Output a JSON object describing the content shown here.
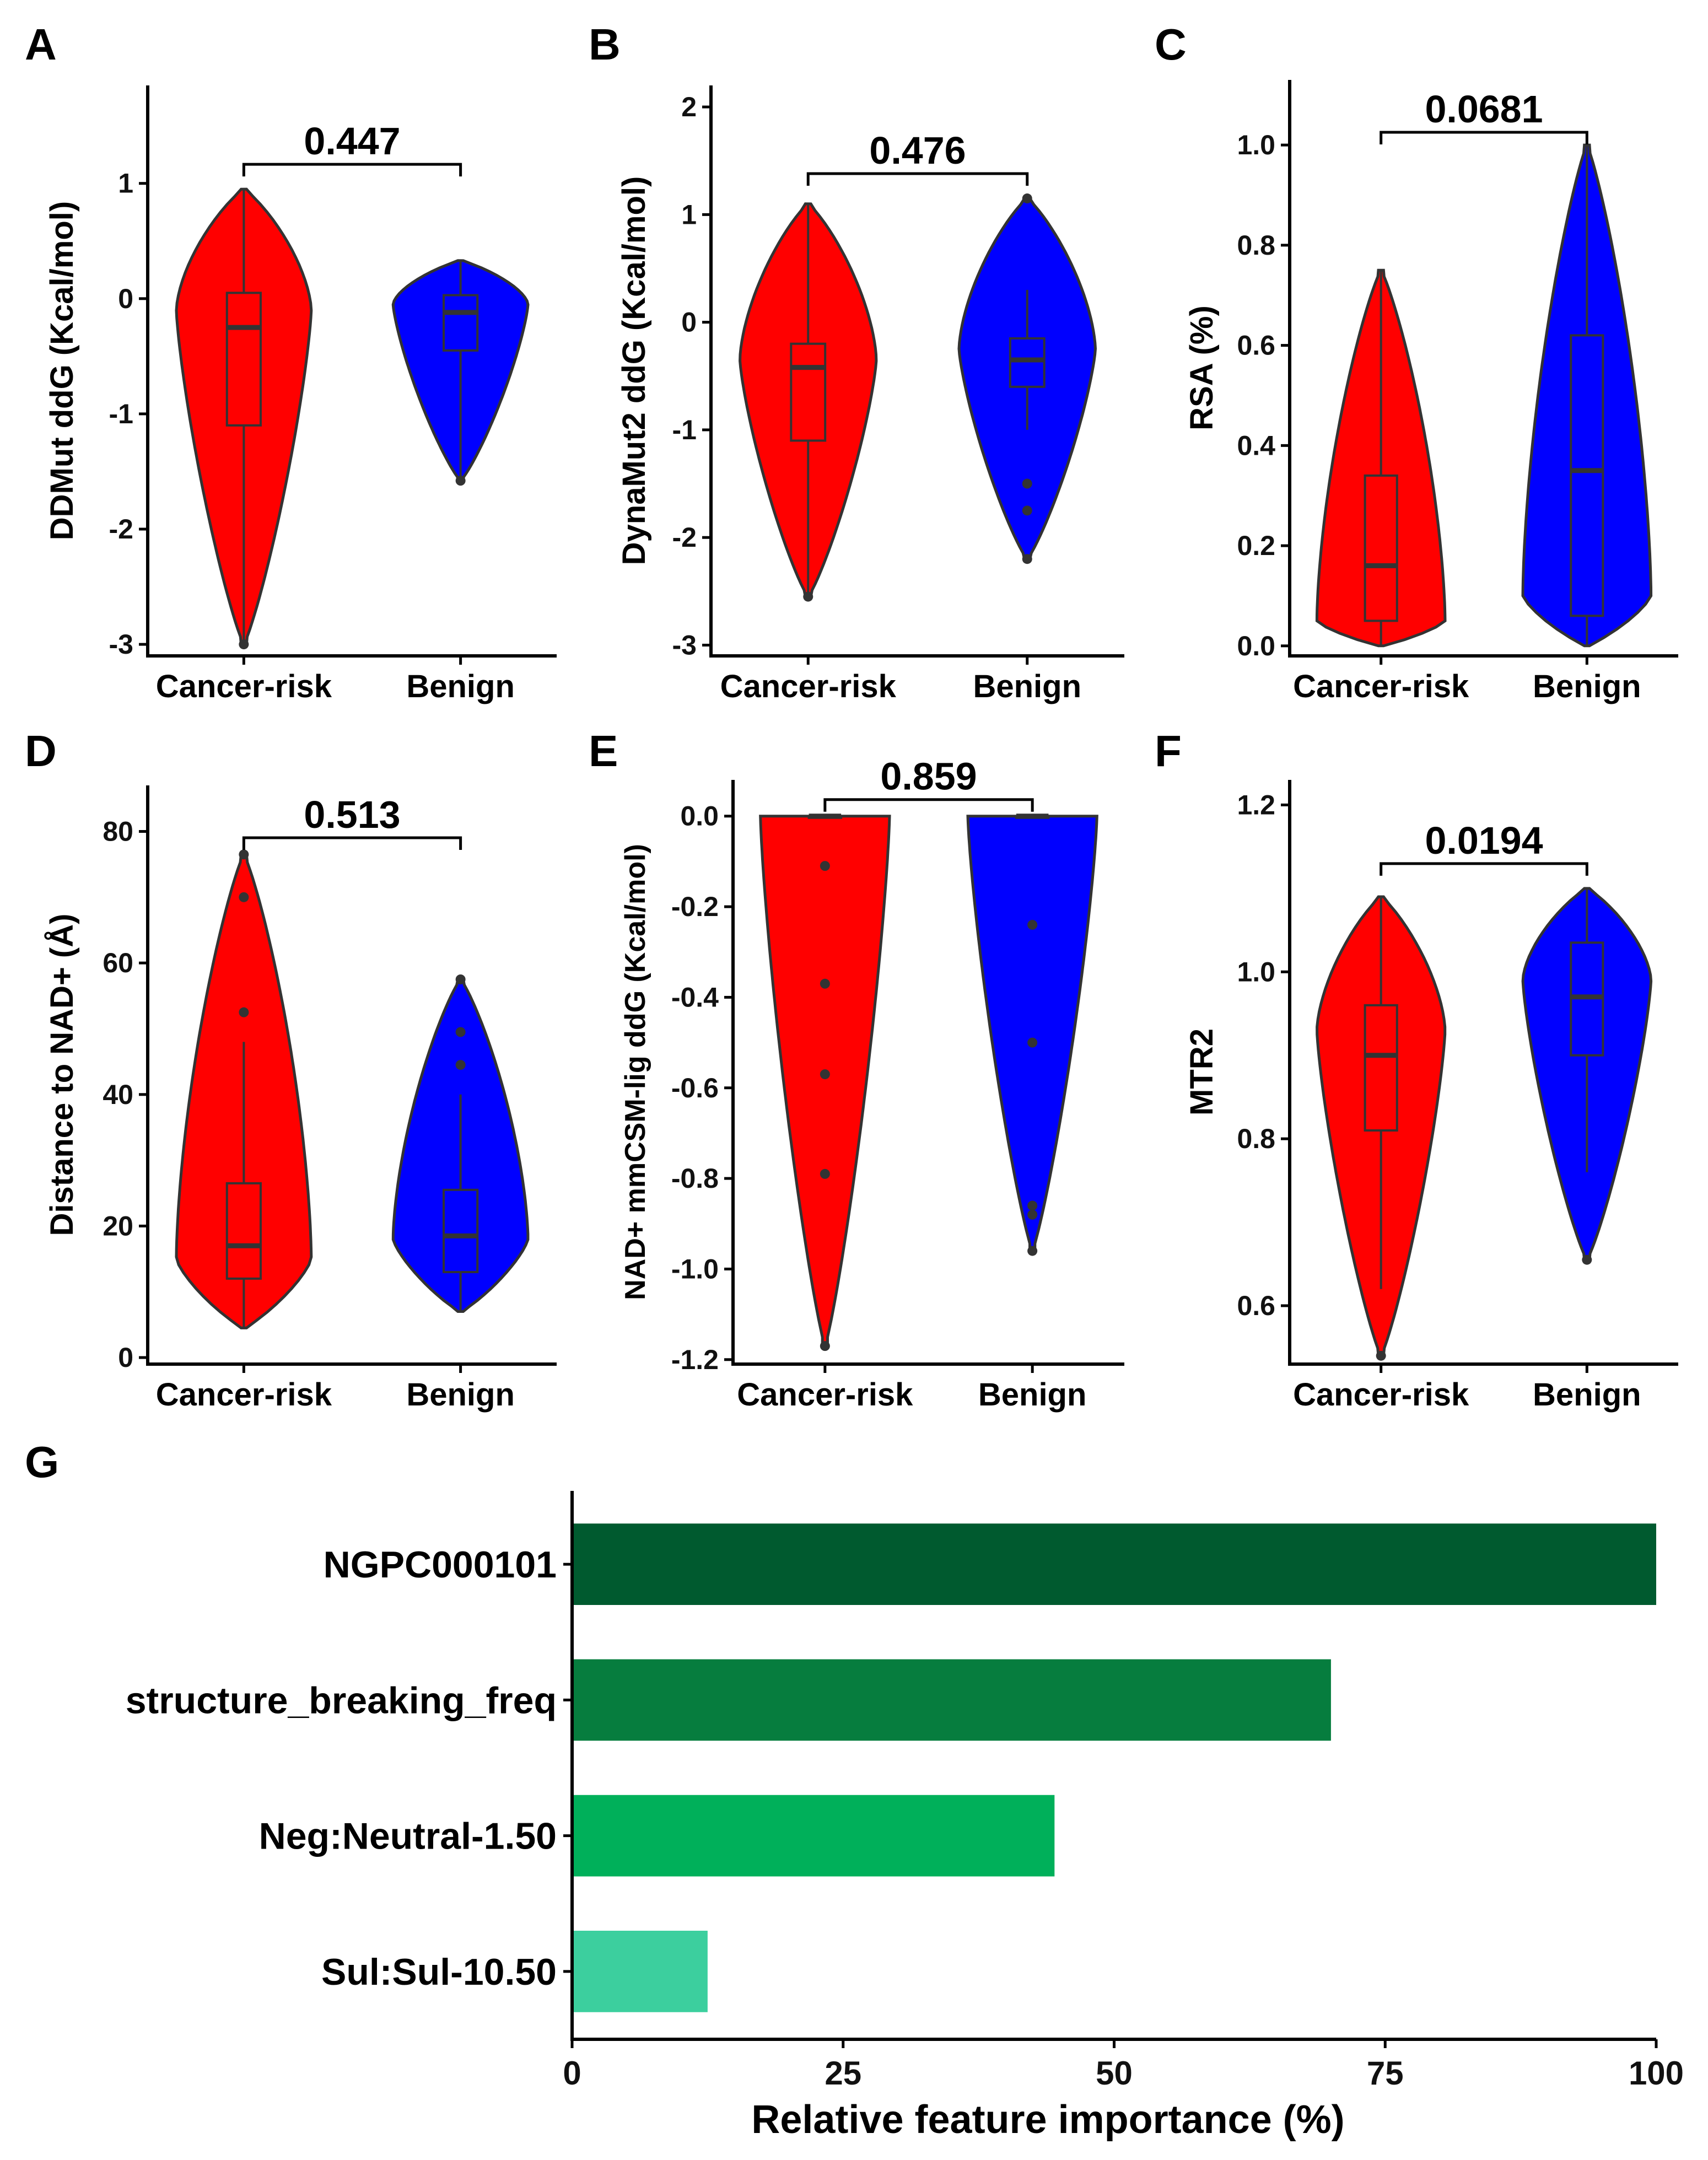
{
  "chart_data": [
    {
      "id": "A",
      "panel_label": "A",
      "type": "violin",
      "ylabel": "DDMut ddG (Kcal/mol)",
      "categories": [
        "Cancer-risk",
        "Benign"
      ],
      "yticks": [
        -3,
        -2,
        -1,
        0,
        1
      ],
      "ylim": [
        -3.1,
        1.85
      ],
      "p_value": "0.447",
      "colors": [
        "#ff0000",
        "#0000ff"
      ],
      "groups": [
        {
          "name": "Cancer-risk",
          "min": -3.0,
          "max": 0.95,
          "q1": -1.1,
          "median": -0.25,
          "q3": 0.05,
          "whisker_low": -3.0,
          "whisker_high": 0.95,
          "mode": -0.1,
          "outliers": [
            -3.0
          ]
        },
        {
          "name": "Benign",
          "min": -1.58,
          "max": 0.33,
          "q1": -0.45,
          "median": -0.12,
          "q3": 0.03,
          "whisker_low": -1.58,
          "whisker_high": 0.33,
          "mode": -0.05,
          "outliers": [
            -1.58
          ]
        }
      ]
    },
    {
      "id": "B",
      "panel_label": "B",
      "type": "violin",
      "ylabel": "DynaMut2 ddG (Kcal/mol)",
      "categories": [
        "Cancer-risk",
        "Benign"
      ],
      "yticks": [
        -3,
        -2,
        -1,
        0,
        1,
        2
      ],
      "ylim": [
        -3.1,
        2.2
      ],
      "p_value": "0.476",
      "colors": [
        "#ff0000",
        "#0000ff"
      ],
      "groups": [
        {
          "name": "Cancer-risk",
          "min": -2.55,
          "max": 1.1,
          "q1": -1.1,
          "median": -0.42,
          "q3": -0.2,
          "whisker_low": -2.55,
          "whisker_high": 1.1,
          "mode": -0.35,
          "outliers": [
            -2.55
          ]
        },
        {
          "name": "Benign",
          "min": -2.2,
          "max": 1.15,
          "q1": -0.6,
          "median": -0.35,
          "q3": -0.15,
          "whisker_low": -1.0,
          "whisker_high": 0.3,
          "mode": -0.25,
          "outliers": [
            1.15,
            -1.5,
            -1.75,
            -2.2
          ]
        }
      ]
    },
    {
      "id": "C",
      "panel_label": "C",
      "type": "violin",
      "ylabel": "RSA (%)",
      "categories": [
        "Cancer-risk",
        "Benign"
      ],
      "yticks": [
        0.0,
        0.2,
        0.4,
        0.6,
        0.8,
        1.0
      ],
      "ytick_labels": [
        "0.0",
        "0.2",
        "0.4",
        "0.6",
        "0.8",
        "1.0"
      ],
      "ylim": [
        -0.02,
        1.13
      ],
      "p_value": "0.0681",
      "colors": [
        "#ff0000",
        "#0000ff"
      ],
      "groups": [
        {
          "name": "Cancer-risk",
          "min": 0.0,
          "max": 0.75,
          "q1": 0.05,
          "median": 0.16,
          "q3": 0.34,
          "whisker_low": 0.0,
          "whisker_high": 0.75,
          "mode": 0.05,
          "outliers": []
        },
        {
          "name": "Benign",
          "min": 0.0,
          "max": 1.0,
          "q1": 0.06,
          "median": 0.35,
          "q3": 0.62,
          "whisker_low": 0.0,
          "whisker_high": 1.0,
          "mode": 0.1,
          "outliers": []
        }
      ]
    },
    {
      "id": "D",
      "panel_label": "D",
      "type": "violin",
      "ylabel": "Distance to NAD+ (Å)",
      "categories": [
        "Cancer-risk",
        "Benign"
      ],
      "yticks": [
        0,
        20,
        40,
        60,
        80
      ],
      "ylim": [
        -1,
        87
      ],
      "p_value": "0.513",
      "colors": [
        "#ff0000",
        "#0000ff"
      ],
      "groups": [
        {
          "name": "Cancer-risk",
          "min": 4.5,
          "max": 76.5,
          "q1": 12,
          "median": 17,
          "q3": 26.5,
          "whisker_low": 4.5,
          "whisker_high": 48,
          "mode": 15,
          "outliers": [
            52.5,
            70,
            76.5
          ]
        },
        {
          "name": "Benign",
          "min": 7,
          "max": 57.5,
          "q1": 13,
          "median": 18.5,
          "q3": 25.5,
          "whisker_low": 7,
          "whisker_high": 40,
          "mode": 18,
          "outliers": [
            44.5,
            49.5,
            57.5
          ]
        }
      ]
    },
    {
      "id": "E",
      "panel_label": "E",
      "type": "violin",
      "ylabel": "NAD+ mmCSM-lig ddG (Kcal/mol)",
      "categories": [
        "Cancer-risk",
        "Benign"
      ],
      "yticks": [
        -1.2,
        -1.0,
        -0.8,
        -0.6,
        -0.4,
        -0.2,
        0.0
      ],
      "ytick_labels": [
        "-1.2",
        "-1.0",
        "-0.8",
        "-0.6",
        "-0.4",
        "-0.2",
        "0.0"
      ],
      "ylim": [
        -1.21,
        0.08
      ],
      "p_value": "0.859",
      "colors": [
        "#ff0000",
        "#0000ff"
      ],
      "groups": [
        {
          "name": "Cancer-risk",
          "min": -1.17,
          "max": 0.0,
          "q1": 0.0,
          "median": 0.0,
          "q3": 0.0,
          "whisker_low": 0.0,
          "whisker_high": 0.0,
          "mode": 0.0,
          "outliers": [
            -0.11,
            -0.37,
            -0.57,
            -0.79,
            -1.17
          ]
        },
        {
          "name": "Benign",
          "min": -0.96,
          "max": 0.0,
          "q1": 0.0,
          "median": 0.0,
          "q3": 0.0,
          "whisker_low": 0.0,
          "whisker_high": 0.0,
          "mode": 0.0,
          "outliers": [
            -0.24,
            -0.5,
            -0.86,
            -0.88,
            -0.96
          ]
        }
      ]
    },
    {
      "id": "F",
      "panel_label": "F",
      "type": "violin",
      "ylabel": "MTR2",
      "categories": [
        "Cancer-risk",
        "Benign"
      ],
      "yticks": [
        0.6,
        0.8,
        1.0,
        1.2
      ],
      "ytick_labels": [
        "0.6",
        "0.8",
        "1.0",
        "1.2"
      ],
      "ylim": [
        0.53,
        1.23
      ],
      "p_value": "0.0194",
      "colors": [
        "#ff0000",
        "#0000ff"
      ],
      "groups": [
        {
          "name": "Cancer-risk",
          "min": 0.54,
          "max": 1.09,
          "q1": 0.81,
          "median": 0.9,
          "q3": 0.96,
          "whisker_low": 0.62,
          "whisker_high": 1.09,
          "mode": 0.93,
          "outliers": [
            0.54
          ]
        },
        {
          "name": "Benign",
          "min": 0.655,
          "max": 1.1,
          "q1": 0.9,
          "median": 0.97,
          "q3": 1.035,
          "whisker_low": 0.76,
          "whisker_high": 1.1,
          "mode": 0.99,
          "outliers": [
            0.655
          ]
        }
      ]
    },
    {
      "id": "G",
      "panel_label": "G",
      "type": "bar",
      "orientation": "horizontal",
      "xlabel": "Relative feature importance (%)",
      "categories": [
        "NGPC000101",
        "structure_breaking_freq",
        "Neg:Neutral-1.50",
        "Sul:Sul-10.50"
      ],
      "values": [
        100,
        70,
        44.5,
        12.5
      ],
      "colors": [
        "#005a2f",
        "#067d3e",
        "#00b05a",
        "#3ccf9e"
      ],
      "xticks": [
        0,
        25,
        50,
        75,
        100
      ],
      "xlim": [
        0,
        100
      ]
    }
  ]
}
